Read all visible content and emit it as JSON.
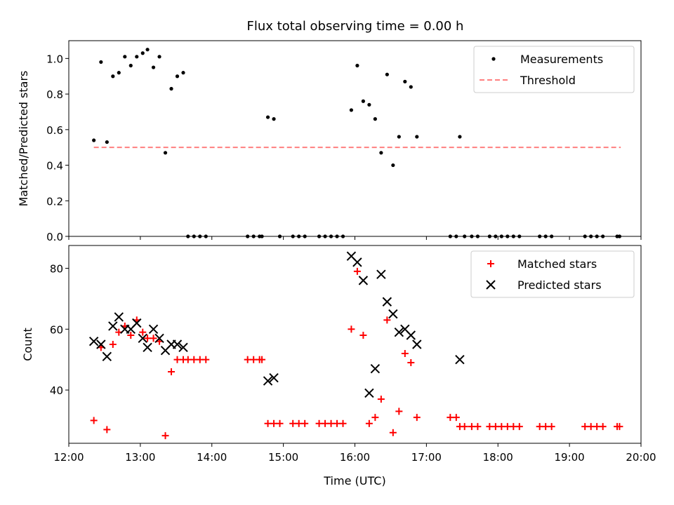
{
  "title": "Flux total observing time = 0.00 h",
  "chart_data": [
    {
      "type": "scatter",
      "ylabel": "Matched/Predicted stars",
      "xlim": [
        "12:00",
        "20:00"
      ],
      "ylim": [
        0,
        1.1
      ],
      "yticks": [
        "0.0",
        "0.2",
        "0.4",
        "0.6",
        "0.8",
        "1.0"
      ],
      "legend_position": "top-right",
      "series": [
        {
          "name": "Measurements",
          "marker": "dot",
          "color": "#000000",
          "points": [
            [
              "12:21",
              0.54
            ],
            [
              "12:27",
              0.98
            ],
            [
              "12:32",
              0.53
            ],
            [
              "12:37",
              0.9
            ],
            [
              "12:42",
              0.92
            ],
            [
              "12:47",
              1.01
            ],
            [
              "12:52",
              0.96
            ],
            [
              "12:57",
              1.01
            ],
            [
              "13:02",
              1.03
            ],
            [
              "13:06",
              1.05
            ],
            [
              "13:11",
              0.95
            ],
            [
              "13:16",
              1.01
            ],
            [
              "13:21",
              0.47
            ],
            [
              "13:26",
              0.83
            ],
            [
              "13:31",
              0.9
            ],
            [
              "13:36",
              0.92
            ],
            [
              "13:40",
              0.0
            ],
            [
              "13:45",
              0.0
            ],
            [
              "13:50",
              0.0
            ],
            [
              "13:55",
              0.0
            ],
            [
              "14:30",
              0.0
            ],
            [
              "14:35",
              0.0
            ],
            [
              "14:40",
              0.0
            ],
            [
              "14:42",
              0.0
            ],
            [
              "14:47",
              0.67
            ],
            [
              "14:52",
              0.66
            ],
            [
              "14:57",
              0.0
            ],
            [
              "15:08",
              0.0
            ],
            [
              "15:13",
              0.0
            ],
            [
              "15:18",
              0.0
            ],
            [
              "15:30",
              0.0
            ],
            [
              "15:35",
              0.0
            ],
            [
              "15:40",
              0.0
            ],
            [
              "15:45",
              0.0
            ],
            [
              "15:50",
              0.0
            ],
            [
              "15:57",
              0.71
            ],
            [
              "16:02",
              0.96
            ],
            [
              "16:07",
              0.76
            ],
            [
              "16:12",
              0.74
            ],
            [
              "16:17",
              0.66
            ],
            [
              "16:22",
              0.47
            ],
            [
              "16:27",
              0.91
            ],
            [
              "16:32",
              0.4
            ],
            [
              "16:37",
              0.56
            ],
            [
              "16:42",
              0.87
            ],
            [
              "16:47",
              0.84
            ],
            [
              "16:52",
              0.56
            ],
            [
              "17:20",
              0.0
            ],
            [
              "17:25",
              0.0
            ],
            [
              "17:28",
              0.56
            ],
            [
              "17:32",
              0.0
            ],
            [
              "17:38",
              0.0
            ],
            [
              "17:43",
              0.0
            ],
            [
              "17:53",
              0.0
            ],
            [
              "17:58",
              0.0
            ],
            [
              "18:03",
              0.0
            ],
            [
              "18:08",
              0.0
            ],
            [
              "18:13",
              0.0
            ],
            [
              "18:18",
              0.0
            ],
            [
              "18:35",
              0.0
            ],
            [
              "18:40",
              0.0
            ],
            [
              "18:45",
              0.0
            ],
            [
              "19:13",
              0.0
            ],
            [
              "19:18",
              0.0
            ],
            [
              "19:23",
              0.0
            ],
            [
              "19:28",
              0.0
            ],
            [
              "19:40",
              0.0
            ],
            [
              "19:42",
              0.0
            ]
          ]
        },
        {
          "name": "Threshold",
          "marker": "dashed-line",
          "color": "#ff7f7f",
          "points": [
            [
              "12:21",
              0.5
            ],
            [
              "19:43",
              0.5
            ]
          ]
        }
      ]
    },
    {
      "type": "scatter",
      "xlabel": "Time (UTC)",
      "ylabel": "Count",
      "xlim": [
        "12:00",
        "20:00"
      ],
      "ylim": [
        22.5,
        87.5
      ],
      "yticks": [
        "40",
        "60",
        "80"
      ],
      "xticks": [
        "12:00",
        "13:00",
        "14:00",
        "15:00",
        "16:00",
        "17:00",
        "18:00",
        "19:00",
        "20:00"
      ],
      "legend_position": "top-right",
      "series": [
        {
          "name": "Matched stars",
          "marker": "plus",
          "color": "#ff0000",
          "points": [
            [
              "12:21",
              30
            ],
            [
              "12:27",
              54
            ],
            [
              "12:32",
              27
            ],
            [
              "12:37",
              55
            ],
            [
              "12:42",
              59
            ],
            [
              "12:47",
              61
            ],
            [
              "12:52",
              58
            ],
            [
              "12:57",
              63
            ],
            [
              "13:02",
              59
            ],
            [
              "13:06",
              57
            ],
            [
              "13:11",
              57
            ],
            [
              "13:16",
              56
            ],
            [
              "13:21",
              25
            ],
            [
              "13:26",
              46
            ],
            [
              "13:31",
              50
            ],
            [
              "13:36",
              50
            ],
            [
              "13:40",
              50
            ],
            [
              "13:45",
              50
            ],
            [
              "13:50",
              50
            ],
            [
              "13:55",
              50
            ],
            [
              "14:30",
              50
            ],
            [
              "14:35",
              50
            ],
            [
              "14:40",
              50
            ],
            [
              "14:42",
              50
            ],
            [
              "14:47",
              29
            ],
            [
              "14:52",
              29
            ],
            [
              "14:57",
              29
            ],
            [
              "15:08",
              29
            ],
            [
              "15:13",
              29
            ],
            [
              "15:18",
              29
            ],
            [
              "15:30",
              29
            ],
            [
              "15:35",
              29
            ],
            [
              "15:40",
              29
            ],
            [
              "15:45",
              29
            ],
            [
              "15:50",
              29
            ],
            [
              "15:57",
              60
            ],
            [
              "16:02",
              79
            ],
            [
              "16:07",
              58
            ],
            [
              "16:12",
              29
            ],
            [
              "16:17",
              31
            ],
            [
              "16:22",
              37
            ],
            [
              "16:27",
              63
            ],
            [
              "16:32",
              26
            ],
            [
              "16:37",
              33
            ],
            [
              "16:42",
              52
            ],
            [
              "16:47",
              49
            ],
            [
              "16:52",
              31
            ],
            [
              "17:20",
              31
            ],
            [
              "17:25",
              31
            ],
            [
              "17:28",
              28
            ],
            [
              "17:32",
              28
            ],
            [
              "17:38",
              28
            ],
            [
              "17:43",
              28
            ],
            [
              "17:53",
              28
            ],
            [
              "17:58",
              28
            ],
            [
              "18:03",
              28
            ],
            [
              "18:08",
              28
            ],
            [
              "18:13",
              28
            ],
            [
              "18:18",
              28
            ],
            [
              "18:35",
              28
            ],
            [
              "18:40",
              28
            ],
            [
              "18:45",
              28
            ],
            [
              "19:13",
              28
            ],
            [
              "19:18",
              28
            ],
            [
              "19:23",
              28
            ],
            [
              "19:28",
              28
            ],
            [
              "19:40",
              28
            ],
            [
              "19:42",
              28
            ]
          ]
        },
        {
          "name": "Predicted stars",
          "marker": "x",
          "color": "#000000",
          "points": [
            [
              "12:21",
              56
            ],
            [
              "12:27",
              55
            ],
            [
              "12:32",
              51
            ],
            [
              "12:37",
              61
            ],
            [
              "12:42",
              64
            ],
            [
              "12:47",
              60
            ],
            [
              "12:52",
              60
            ],
            [
              "12:57",
              62
            ],
            [
              "13:02",
              57
            ],
            [
              "13:06",
              54
            ],
            [
              "13:11",
              60
            ],
            [
              "13:16",
              57
            ],
            [
              "13:21",
              53
            ],
            [
              "13:26",
              55
            ],
            [
              "13:31",
              55
            ],
            [
              "13:36",
              54
            ],
            [
              "14:47",
              43
            ],
            [
              "14:52",
              44
            ],
            [
              "15:57",
              84
            ],
            [
              "16:02",
              82
            ],
            [
              "16:07",
              76
            ],
            [
              "16:12",
              39
            ],
            [
              "16:17",
              47
            ],
            [
              "16:22",
              78
            ],
            [
              "16:27",
              69
            ],
            [
              "16:32",
              65
            ],
            [
              "16:37",
              59
            ],
            [
              "16:42",
              60
            ],
            [
              "16:47",
              58
            ],
            [
              "16:52",
              55
            ],
            [
              "17:28",
              50
            ]
          ]
        }
      ]
    }
  ]
}
